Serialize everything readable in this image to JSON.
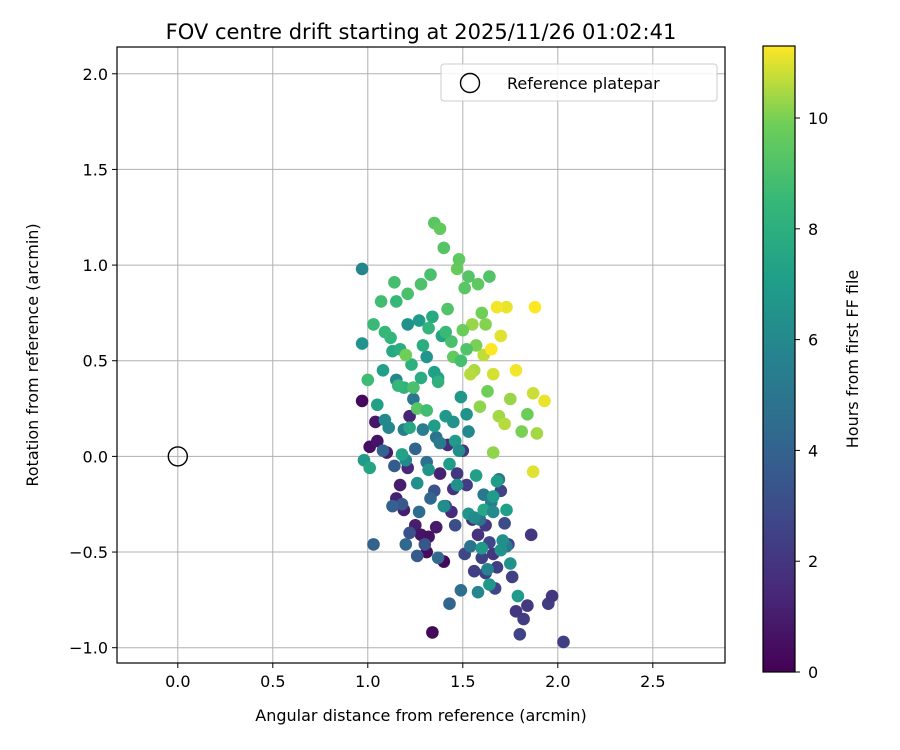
{
  "chart_data": {
    "type": "scatter",
    "title": "FOV centre drift starting at 2025/11/26 01:02:41",
    "xlabel": "Angular distance from reference (arcmin)",
    "ylabel": "Rotation from reference (arcmin)",
    "xlim": [
      -0.32,
      2.88
    ],
    "ylim": [
      -1.08,
      2.14
    ],
    "xticks": [
      0.0,
      0.5,
      1.0,
      1.5,
      2.0,
      2.5
    ],
    "yticks": [
      -1.0,
      -0.5,
      0.0,
      0.5,
      1.0,
      1.5,
      2.0
    ],
    "xtick_labels": [
      "0.0",
      "0.5",
      "1.0",
      "1.5",
      "2.0",
      "2.5"
    ],
    "ytick_labels": [
      "−1.0",
      "−0.5",
      "0.0",
      "0.5",
      "1.0",
      "1.5",
      "2.0"
    ],
    "grid": true,
    "legend": {
      "placement": "top-right",
      "entries": [
        "Reference platepar"
      ]
    },
    "reference_point": {
      "x": 0.0,
      "y": 0.0
    },
    "colorbar": {
      "label": "Hours from first FF file",
      "min": 0,
      "max": 11.3,
      "ticks": [
        0,
        2,
        4,
        6,
        8,
        10
      ],
      "tick_labels": [
        "0",
        "2",
        "4",
        "6",
        "8",
        "10"
      ],
      "colormap": "viridis"
    },
    "points": [
      [
        0.97,
        0.29,
        0.3
      ],
      [
        1.01,
        0.05,
        0.5
      ],
      [
        1.04,
        0.18,
        0.8
      ],
      [
        1.05,
        0.08,
        0.7
      ],
      [
        1.1,
        0.02,
        0.9
      ],
      [
        1.15,
        -0.22,
        1.2
      ],
      [
        1.17,
        -0.15,
        1.0
      ],
      [
        1.19,
        -0.28,
        1.1
      ],
      [
        1.21,
        -0.06,
        1.4
      ],
      [
        1.22,
        0.21,
        1.3
      ],
      [
        1.25,
        -0.36,
        1.0
      ],
      [
        1.28,
        -0.41,
        0.7
      ],
      [
        1.31,
        -0.5,
        0.4
      ],
      [
        1.32,
        -0.42,
        0.6
      ],
      [
        1.34,
        -0.92,
        0.2
      ],
      [
        1.36,
        -0.37,
        0.9
      ],
      [
        1.38,
        -0.09,
        1.2
      ],
      [
        1.4,
        -0.55,
        0.3
      ],
      [
        1.42,
        0.06,
        1.6
      ],
      [
        1.44,
        -0.29,
        1.5
      ],
      [
        1.45,
        -0.17,
        1.8
      ],
      [
        1.47,
        -0.09,
        2.1
      ],
      [
        1.5,
        0.03,
        2.0
      ],
      [
        1.52,
        -0.15,
        2.3
      ],
      [
        1.55,
        -0.33,
        1.6
      ],
      [
        1.58,
        -0.41,
        1.9
      ],
      [
        1.6,
        -0.53,
        2.5
      ],
      [
        1.62,
        -0.36,
        2.2
      ],
      [
        1.64,
        -0.45,
        2.8
      ],
      [
        1.66,
        -0.51,
        2.0
      ],
      [
        1.68,
        -0.58,
        2.4
      ],
      [
        1.7,
        -0.18,
        2.6
      ],
      [
        1.72,
        -0.35,
        2.9
      ],
      [
        1.74,
        -0.46,
        2.7
      ],
      [
        1.76,
        -0.63,
        2.5
      ],
      [
        1.78,
        -0.81,
        2.1
      ],
      [
        1.8,
        -0.93,
        2.6
      ],
      [
        1.82,
        -0.85,
        2.3
      ],
      [
        1.84,
        -0.78,
        2.2
      ],
      [
        1.86,
        -0.41,
        2.0
      ],
      [
        1.95,
        -0.77,
        2.3
      ],
      [
        1.97,
        -0.73,
        2.1
      ],
      [
        2.03,
        -0.97,
        2.4
      ],
      [
        1.62,
        -0.61,
        2.4
      ],
      [
        1.67,
        -0.69,
        2.6
      ],
      [
        1.56,
        -0.6,
        2.4
      ],
      [
        1.51,
        -0.51,
        2.8
      ],
      [
        1.46,
        -0.36,
        3.0
      ],
      [
        1.41,
        -0.26,
        3.1
      ],
      [
        1.35,
        -0.18,
        3.3
      ],
      [
        1.3,
        -0.46,
        3.4
      ],
      [
        1.26,
        -0.52,
        3.6
      ],
      [
        1.22,
        -0.4,
        3.2
      ],
      [
        1.18,
        -0.25,
        3.5
      ],
      [
        1.14,
        -0.05,
        3.7
      ],
      [
        1.13,
        -0.26,
        3.9
      ],
      [
        1.08,
        0.03,
        4.1
      ],
      [
        1.03,
        -0.46,
        4.0
      ],
      [
        1.2,
        -0.46,
        4.3
      ],
      [
        1.27,
        -0.29,
        4.5
      ],
      [
        1.33,
        -0.22,
        4.2
      ],
      [
        1.37,
        -0.53,
        4.4
      ],
      [
        1.43,
        -0.77,
        4.2
      ],
      [
        1.49,
        -0.7,
        4.6
      ],
      [
        1.54,
        -0.47,
        4.8
      ],
      [
        1.59,
        -0.33,
        4.9
      ],
      [
        1.61,
        -0.2,
        5.1
      ],
      [
        1.65,
        -0.24,
        5.3
      ],
      [
        1.69,
        -0.12,
        5.0
      ],
      [
        1.73,
        -0.47,
        5.2
      ],
      [
        1.25,
        0.04,
        4.1
      ],
      [
        1.31,
        -0.03,
        4.7
      ],
      [
        1.36,
        0.1,
        4.9
      ],
      [
        1.38,
        0.07,
        5.2
      ],
      [
        1.29,
        0.14,
        5.4
      ],
      [
        1.24,
        0.3,
        5.0
      ],
      [
        1.19,
        0.14,
        5.6
      ],
      [
        1.15,
        0.4,
        5.8
      ],
      [
        1.11,
        0.15,
        5.9
      ],
      [
        1.09,
        0.19,
        6.0
      ],
      [
        1.2,
        -0.02,
        6.1
      ],
      [
        1.26,
        -0.14,
        6.3
      ],
      [
        1.32,
        -0.07,
        6.5
      ],
      [
        1.4,
        -0.26,
        6.2
      ],
      [
        1.47,
        -0.15,
        6.4
      ],
      [
        1.53,
        -0.3,
        6.6
      ],
      [
        1.56,
        -0.32,
        6.1
      ],
      [
        1.6,
        -0.48,
        6.8
      ],
      [
        1.64,
        -0.67,
        6.7
      ],
      [
        1.66,
        -0.21,
        6.9
      ],
      [
        1.7,
        -0.49,
        6.4
      ],
      [
        1.75,
        -0.56,
        6.5
      ],
      [
        1.79,
        -0.73,
        6.9
      ],
      [
        1.68,
        -0.13,
        7.0
      ],
      [
        1.73,
        -0.28,
        7.1
      ],
      [
        1.52,
        0.22,
        6.5
      ],
      [
        1.49,
        0.31,
        6.7
      ],
      [
        1.46,
        0.08,
        6.9
      ],
      [
        1.43,
        -0.04,
        7.0
      ],
      [
        1.37,
        0.41,
        7.3
      ],
      [
        0.97,
        0.98,
        5.8
      ],
      [
        0.97,
        0.59,
        6.6
      ],
      [
        0.98,
        -0.02,
        6.9
      ],
      [
        1.01,
        -0.06,
        7.4
      ],
      [
        1.05,
        0.27,
        7.2
      ],
      [
        1.08,
        0.45,
        7.1
      ],
      [
        1.13,
        0.55,
        7.6
      ],
      [
        1.17,
        0.56,
        7.9
      ],
      [
        1.21,
        0.69,
        6.4
      ],
      [
        1.27,
        0.71,
        6.9
      ],
      [
        1.31,
        0.52,
        6.6
      ],
      [
        1.35,
        0.44,
        7.1
      ],
      [
        1.39,
        0.63,
        7.4
      ],
      [
        1.34,
        0.73,
        7.7
      ],
      [
        1.29,
        0.58,
        7.9
      ],
      [
        1.23,
        0.48,
        8.0
      ],
      [
        1.19,
        0.36,
        8.2
      ],
      [
        1.16,
        0.37,
        8.4
      ],
      [
        1.12,
        0.62,
        8.3
      ],
      [
        1.09,
        0.65,
        8.5
      ],
      [
        1.03,
        0.69,
        8.6
      ],
      [
        1.0,
        0.4,
        8.7
      ],
      [
        1.07,
        0.81,
        8.8
      ],
      [
        1.14,
        0.91,
        8.9
      ],
      [
        1.21,
        0.85,
        9.0
      ],
      [
        1.28,
        0.9,
        9.1
      ],
      [
        1.33,
        0.95,
        9.0
      ],
      [
        1.35,
        1.22,
        9.4
      ],
      [
        1.38,
        1.19,
        9.6
      ],
      [
        1.4,
        1.09,
        9.3
      ],
      [
        1.42,
        0.77,
        9.2
      ],
      [
        1.44,
        0.6,
        9.0
      ],
      [
        1.47,
        0.98,
        9.7
      ],
      [
        1.48,
        1.03,
        9.5
      ],
      [
        1.51,
        0.88,
        9.4
      ],
      [
        1.53,
        0.94,
        9.3
      ],
      [
        1.58,
        0.9,
        9.5
      ],
      [
        1.6,
        0.75,
        9.9
      ],
      [
        1.64,
        0.94,
        9.2
      ],
      [
        1.62,
        0.69,
        10.1
      ],
      [
        1.55,
        0.69,
        10.3
      ],
      [
        1.5,
        0.66,
        9.8
      ],
      [
        1.45,
        0.52,
        9.6
      ],
      [
        1.24,
        0.36,
        9.0
      ],
      [
        1.2,
        0.53,
        9.9
      ],
      [
        1.26,
        0.25,
        9.4
      ],
      [
        1.31,
        0.24,
        8.8
      ],
      [
        1.15,
        0.81,
        8.5
      ],
      [
        1.56,
        0.45,
        10.5
      ],
      [
        1.61,
        0.53,
        10.7
      ],
      [
        1.66,
        0.43,
        10.9
      ],
      [
        1.7,
        0.63,
        11.0
      ],
      [
        1.73,
        0.78,
        11.1
      ],
      [
        1.68,
        0.78,
        11.2
      ],
      [
        1.65,
        0.56,
        11.3
      ],
      [
        1.59,
        0.26,
        10.2
      ],
      [
        1.69,
        0.21,
        10.4
      ],
      [
        1.72,
        0.17,
        10.6
      ],
      [
        1.75,
        0.3,
        10.3
      ],
      [
        1.78,
        0.45,
        11.2
      ],
      [
        1.81,
        0.13,
        10.0
      ],
      [
        1.84,
        0.22,
        9.8
      ],
      [
        1.87,
        0.33,
        10.8
      ],
      [
        1.88,
        0.78,
        11.3
      ],
      [
        1.89,
        0.12,
        10.4
      ],
      [
        1.93,
        0.29,
        11.1
      ],
      [
        1.87,
        -0.08,
        11.0
      ],
      [
        1.66,
        0.02,
        10.2
      ],
      [
        1.63,
        0.34,
        9.9
      ],
      [
        1.54,
        0.43,
        10.6
      ],
      [
        1.57,
        0.58,
        10.0
      ],
      [
        1.52,
        0.56,
        9.2
      ],
      [
        1.49,
        0.5,
        8.9
      ],
      [
        1.41,
        0.65,
        8.6
      ],
      [
        1.37,
        0.39,
        8.1
      ],
      [
        1.32,
        0.67,
        8.3
      ],
      [
        1.28,
        0.41,
        7.8
      ],
      [
        1.22,
        0.15,
        7.5
      ],
      [
        1.18,
        0.01,
        7.3
      ],
      [
        1.35,
        0.16,
        7.0
      ],
      [
        1.41,
        0.21,
        6.8
      ],
      [
        1.45,
        0.18,
        6.5
      ],
      [
        1.48,
        0.03,
        6.2
      ],
      [
        1.53,
        0.13,
        6.0
      ],
      [
        1.57,
        -0.1,
        7.2
      ],
      [
        1.61,
        -0.28,
        7.5
      ],
      [
        1.66,
        -0.29,
        6.1
      ],
      [
        1.71,
        -0.44,
        6.3
      ],
      [
        1.63,
        -0.59,
        5.6
      ],
      [
        1.58,
        -0.71,
        5.9
      ]
    ]
  }
}
